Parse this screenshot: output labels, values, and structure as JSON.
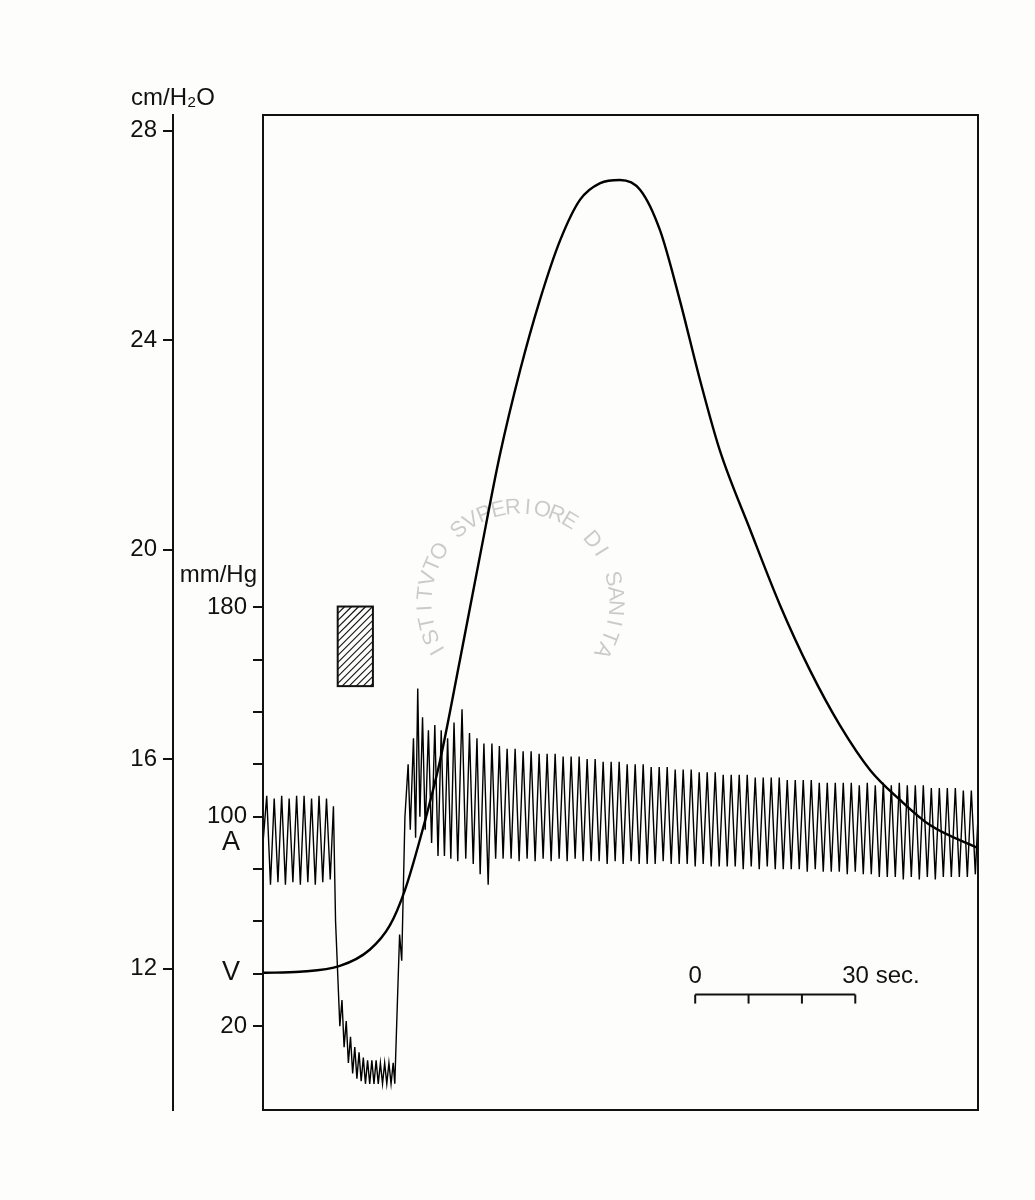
{
  "chart_data": {
    "type": "line",
    "ylabel": "cm/H₂O",
    "y2label": "mm/Hg",
    "xlim": [
      0,
      134
    ],
    "ylim": [
      9.3,
      28.3
    ],
    "yticks": [
      12,
      16,
      20,
      24,
      28
    ],
    "y2lim": [
      -12,
      368
    ],
    "y2ticks": [
      20,
      {
        "value": 40,
        "label": null
      },
      {
        "value": 60,
        "label": null
      },
      {
        "value": 80,
        "label": null
      },
      100,
      {
        "value": 120,
        "label": null
      },
      {
        "value": 140,
        "label": null
      },
      {
        "value": 160,
        "label": null
      },
      180
    ],
    "tick_labels": "y",
    "grid": false,
    "series": [
      {
        "name": "A",
        "axis": "y2",
        "color": "#000000",
        "x": [
          0,
          0.7,
          1.4,
          2.1,
          2.8,
          3.5,
          4.2,
          4.9,
          5.6,
          6.3,
          7.0,
          7.7,
          8.4,
          9.1,
          9.8,
          10.5,
          11.2,
          11.9,
          12.6,
          13.2,
          13.6,
          14.0,
          14.4,
          14.8,
          15.2,
          15.6,
          16.0,
          16.4,
          16.8,
          17.2,
          17.6,
          18.0,
          18.4,
          18.8,
          19.2,
          19.6,
          20.0,
          20.4,
          20.8,
          21.2,
          21.6,
          22.0,
          22.4,
          22.8,
          23.2,
          23.6,
          24.0,
          24.4,
          24.7,
          25.2,
          25.6,
          26.0,
          26.6,
          27.2,
          27.6,
          28.2,
          28.6,
          29.0,
          29.4,
          29.9,
          30.4,
          31.0,
          31.6,
          32.2,
          32.8,
          33.4,
          34.0,
          34.6,
          35.2,
          35.8,
          36.5,
          37.3,
          38.0,
          38.7,
          39.4,
          40.1,
          40.7,
          41.4,
          42.2,
          42.9,
          43.6,
          44.3,
          45.0,
          45.75,
          46.5,
          47.25,
          48,
          48.75,
          49.5,
          50.25,
          51,
          51.75,
          52.5,
          53.25,
          54,
          54.75,
          55.5,
          56.25,
          57,
          57.75,
          58.5,
          59.25,
          60,
          60.75,
          61.5,
          62.25,
          63,
          63.75,
          64.5,
          65.25,
          66,
          66.75,
          67.5,
          68.25,
          69,
          69.75,
          70.5,
          71.25,
          72,
          72.75,
          73.5,
          74.25,
          75,
          75.75,
          76.5,
          77.25,
          78,
          78.75,
          79.5,
          80.25,
          81,
          81.75,
          82.5,
          83.25,
          84,
          84.75,
          85.5,
          86.25,
          87,
          87.75,
          88.5,
          89.25,
          90,
          90.75,
          91.5,
          92.25,
          93,
          93.75,
          94.5,
          95.25,
          96,
          96.75,
          97.5,
          98.25,
          99,
          99.75,
          100.5,
          101.25,
          102,
          102.75,
          103.5,
          104.25,
          105,
          105.75,
          106.5,
          107.25,
          108,
          108.75,
          109.5,
          110.25,
          111,
          111.75,
          112.5,
          113.25,
          114,
          114.75,
          115.5,
          116.25,
          117,
          117.75,
          118.5,
          119.25,
          120,
          120.75,
          121.5,
          122.25,
          123,
          123.75,
          124.5,
          125.25,
          126,
          126.75,
          127.5,
          128.25,
          129,
          129.75,
          130.5,
          131.25,
          132,
          132.75,
          133.5,
          134
        ],
        "values": [
          90,
          108,
          74,
          107,
          75,
          108,
          74,
          107,
          75,
          108,
          74,
          108,
          75,
          107,
          74,
          108,
          75,
          107,
          76,
          104,
          60,
          40,
          20,
          30,
          12,
          22,
          6,
          16,
          2,
          12,
          0,
          10,
          -1,
          8,
          -2,
          7,
          -2,
          7,
          -2,
          7,
          -2,
          6,
          -2,
          6,
          -2,
          6,
          -2,
          6,
          -2,
          30,
          55,
          45,
          100,
          120,
          95,
          130,
          92,
          149,
          100,
          138,
          95,
          133,
          90,
          135,
          85,
          133,
          85,
          130,
          84,
          136,
          83,
          141,
          84,
          132,
          82,
          130,
          78,
          128,
          74,
          128,
          84,
          127,
          84,
          126,
          84,
          126,
          83,
          125,
          84,
          125,
          83,
          124,
          84,
          124,
          83,
          124,
          84,
          123,
          83,
          123,
          84,
          123,
          83,
          122,
          83,
          122,
          83,
          121,
          82,
          121,
          83,
          121,
          82,
          120,
          83,
          120,
          82,
          120,
          82,
          119,
          82,
          119,
          83,
          119,
          82,
          118,
          82,
          118,
          82,
          118,
          81,
          117,
          82,
          117,
          81,
          117,
          81,
          116,
          81,
          116,
          81,
          116,
          80,
          116,
          81,
          115,
          80,
          115,
          81,
          115,
          80,
          115,
          80,
          114,
          80,
          114,
          80,
          114,
          79,
          114,
          80,
          113,
          79,
          113,
          79,
          113,
          79,
          113,
          78,
          113,
          79,
          112,
          78,
          113,
          78,
          112,
          77,
          113,
          77,
          112,
          77,
          113,
          76,
          112,
          77,
          112,
          76,
          112,
          77,
          111,
          76,
          111,
          77,
          111,
          77,
          111,
          77,
          110,
          77,
          110,
          78,
          100
        ]
      },
      {
        "name": "V",
        "axis": "y",
        "color": "#000000",
        "x": [
          0,
          6.9,
          14.4,
          20,
          23.8,
          26.6,
          29.4,
          33.2,
          36.9,
          40.7,
          44.4,
          48.2,
          51.9,
          55.7,
          59.4,
          63.2,
          66.9,
          70.7,
          74.4,
          78.1,
          81.9,
          85.6,
          91.3,
          96.9,
          102.5,
          108.1,
          113.8,
          119.4,
          125,
          134
        ],
        "values": [
          11.92,
          11.94,
          12.05,
          12.36,
          12.83,
          13.5,
          14.46,
          15.98,
          17.89,
          19.9,
          21.81,
          23.43,
          24.77,
          25.91,
          26.68,
          27.0,
          27.06,
          26.87,
          26.1,
          24.77,
          23.24,
          21.9,
          20.38,
          18.94,
          17.7,
          16.65,
          15.79,
          15.22,
          14.74,
          14.3
        ]
      }
    ],
    "stimulus": {
      "start": 14,
      "end": 20.6
    },
    "scale_bar": {
      "start": 81,
      "ticks": [
        0,
        {
          "value": 10,
          "label": null
        },
        {
          "value": 20,
          "label": null
        },
        {
          "value": 30,
          "label": "30 sec."
        }
      ]
    },
    "watermark": "ISTITVTO SVPERIORE DI SANITA"
  }
}
